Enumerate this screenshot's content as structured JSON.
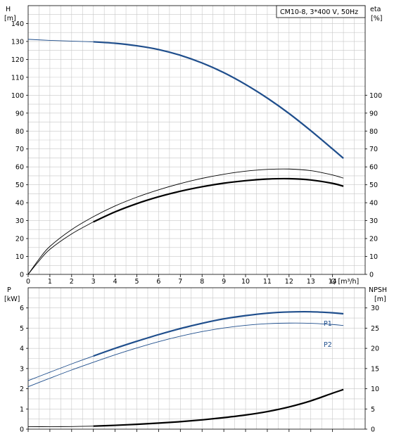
{
  "chart_data": [
    {
      "type": "line",
      "title": "CM10-8, 3*400 V, 50Hz",
      "xlabel": "Q [m³/h]",
      "x_ticks": [
        "0",
        "1",
        "2",
        "3",
        "4",
        "5",
        "6",
        "7",
        "8",
        "9",
        "10",
        "11",
        "12",
        "13",
        "14"
      ],
      "xlim": [
        0,
        15.5
      ],
      "left_axis": {
        "label_top": "H",
        "label_unit": "[m]",
        "ylim": [
          0,
          150
        ],
        "ticks": [
          "0",
          "10",
          "20",
          "30",
          "40",
          "50",
          "60",
          "70",
          "80",
          "90",
          "100",
          "110",
          "120",
          "130",
          "140"
        ]
      },
      "right_axis": {
        "label_top": "eta",
        "label_unit": "[%]",
        "ylim": [
          0,
          150
        ],
        "ticks": [
          "0",
          "10",
          "20",
          "30",
          "40",
          "50",
          "60",
          "70",
          "80",
          "90",
          "100"
        ]
      },
      "grid": true,
      "series": [
        {
          "id": "head",
          "color": "#1f4e8c",
          "style": "thin-thick",
          "thick_from": 3,
          "points": [
            [
              0,
              131.2
            ],
            [
              1,
              130.6
            ],
            [
              2,
              130.2
            ],
            [
              3,
              129.8
            ],
            [
              4,
              129.0
            ],
            [
              5,
              127.6
            ],
            [
              6,
              125.5
            ],
            [
              7,
              122.3
            ],
            [
              8,
              118.0
            ],
            [
              9,
              112.6
            ],
            [
              10,
              106.0
            ],
            [
              11,
              98.4
            ],
            [
              12,
              89.8
            ],
            [
              13,
              80.2
            ],
            [
              14,
              70.0
            ],
            [
              14.5,
              64.8
            ]
          ]
        },
        {
          "id": "eta-upper",
          "color": "#000000",
          "style": "thin",
          "points": [
            [
              0,
              0
            ],
            [
              0.5,
              8.5
            ],
            [
              1,
              15.6
            ],
            [
              2,
              25.0
            ],
            [
              3,
              32.2
            ],
            [
              4,
              38.2
            ],
            [
              5,
              43.1
            ],
            [
              6,
              47.2
            ],
            [
              7,
              50.7
            ],
            [
              8,
              53.6
            ],
            [
              9,
              55.9
            ],
            [
              10,
              57.6
            ],
            [
              11,
              58.6
            ],
            [
              12,
              58.8
            ],
            [
              13,
              57.9
            ],
            [
              14,
              55.5
            ],
            [
              14.5,
              53.7
            ]
          ]
        },
        {
          "id": "eta-lower",
          "color": "#000000",
          "style": "thin-thick",
          "thick_from": 3,
          "points": [
            [
              0,
              0
            ],
            [
              0.5,
              7.5
            ],
            [
              1,
              14.0
            ],
            [
              2,
              22.6
            ],
            [
              3,
              29.3
            ],
            [
              4,
              34.9
            ],
            [
              5,
              39.5
            ],
            [
              6,
              43.3
            ],
            [
              7,
              46.4
            ],
            [
              8,
              48.9
            ],
            [
              9,
              50.9
            ],
            [
              10,
              52.3
            ],
            [
              11,
              53.2
            ],
            [
              12,
              53.4
            ],
            [
              13,
              52.7
            ],
            [
              14,
              50.8
            ],
            [
              14.5,
              49.2
            ]
          ]
        }
      ]
    },
    {
      "type": "line",
      "xlabel": "",
      "xlim": [
        0,
        15.5
      ],
      "left_axis": {
        "label_top": "P",
        "label_unit": "[kW]",
        "ylim": [
          0,
          7
        ],
        "ticks": [
          "0",
          "1",
          "2",
          "3",
          "4",
          "5",
          "6"
        ]
      },
      "right_axis": {
        "label_top": "NPSH",
        "label_unit": "[m]",
        "ylim": [
          0,
          35
        ],
        "ticks": [
          "0",
          "5",
          "10",
          "15",
          "20",
          "25",
          "30"
        ]
      },
      "grid": true,
      "series": [
        {
          "id": "P1",
          "name": "P1",
          "color": "#1f4e8c",
          "style": "thin-thick",
          "thick_from": 3,
          "points": [
            [
              0,
              2.4
            ],
            [
              1,
              2.82
            ],
            [
              2,
              3.23
            ],
            [
              3,
              3.62
            ],
            [
              4,
              4.0
            ],
            [
              5,
              4.35
            ],
            [
              6,
              4.68
            ],
            [
              7,
              4.98
            ],
            [
              8,
              5.24
            ],
            [
              9,
              5.46
            ],
            [
              10,
              5.62
            ],
            [
              11,
              5.74
            ],
            [
              12,
              5.8
            ],
            [
              13,
              5.81
            ],
            [
              14,
              5.76
            ],
            [
              14.5,
              5.71
            ]
          ]
        },
        {
          "id": "P2",
          "name": "P2",
          "color": "#1f4e8c",
          "style": "thin",
          "points": [
            [
              0,
              2.1
            ],
            [
              1,
              2.52
            ],
            [
              2,
              2.93
            ],
            [
              3,
              3.31
            ],
            [
              4,
              3.68
            ],
            [
              5,
              4.02
            ],
            [
              6,
              4.33
            ],
            [
              7,
              4.6
            ],
            [
              8,
              4.83
            ],
            [
              9,
              5.01
            ],
            [
              10,
              5.14
            ],
            [
              11,
              5.22
            ],
            [
              12,
              5.25
            ],
            [
              13,
              5.24
            ],
            [
              14,
              5.18
            ],
            [
              14.5,
              5.13
            ]
          ]
        },
        {
          "id": "NPSH",
          "color": "#000000",
          "style": "thin-thick",
          "thick_from": 3,
          "axis": "right",
          "points": [
            [
              0,
              0.6
            ],
            [
              1,
              0.62
            ],
            [
              2,
              0.65
            ],
            [
              3,
              0.75
            ],
            [
              4,
              0.95
            ],
            [
              5,
              1.2
            ],
            [
              6,
              1.5
            ],
            [
              7,
              1.85
            ],
            [
              8,
              2.3
            ],
            [
              9,
              2.85
            ],
            [
              10,
              3.5
            ],
            [
              11,
              4.35
            ],
            [
              12,
              5.5
            ],
            [
              13,
              7.0
            ],
            [
              14,
              8.9
            ],
            [
              14.5,
              9.8
            ]
          ]
        }
      ]
    }
  ]
}
